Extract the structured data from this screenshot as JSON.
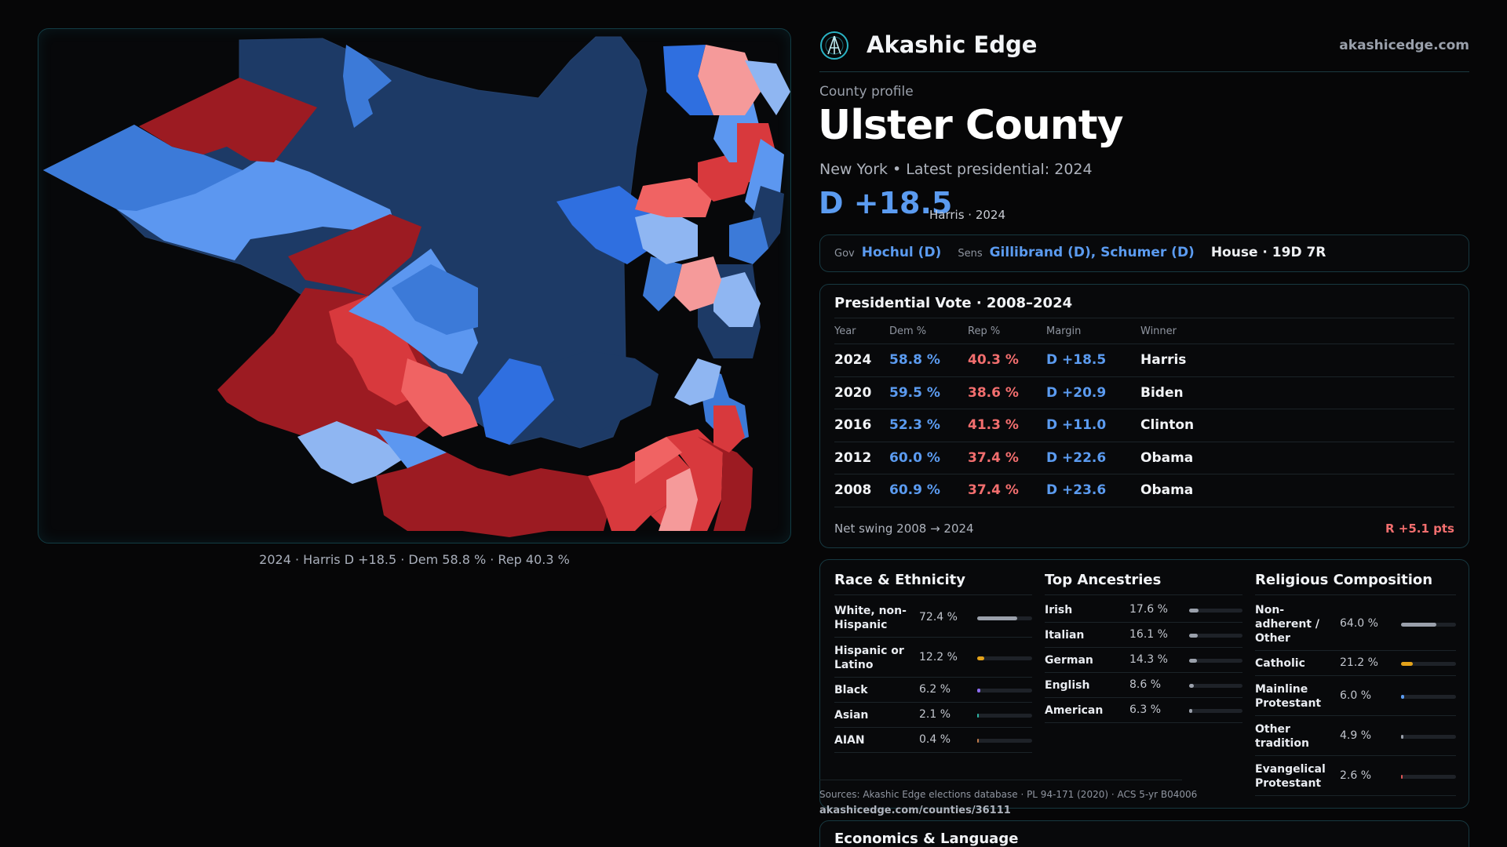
{
  "brand": {
    "name": "Akashic Edge",
    "url": "akashicedge.com",
    "logo": "akashic-edge-logo-icon"
  },
  "profile": {
    "kicker": "County profile",
    "county": "Ulster County",
    "subline": "New York  • Latest presidential: 2024",
    "margin": "D +18.5",
    "margin_note": "Harris · 2024"
  },
  "map": {
    "caption": "2024 · Harris D +18.5 · Dem 58.8 % · Rep 40.3 %"
  },
  "officials": {
    "gov_label": "Gov",
    "gov": "Hochul (D)",
    "sens_label": "Sens",
    "sens": "Gillibrand (D), Schumer (D)",
    "house": "House · 19D 7R"
  },
  "presidential": {
    "title": "Presidential Vote · 2008–2024",
    "headers": [
      "Year",
      "Dem %",
      "Rep %",
      "Margin",
      "Winner"
    ],
    "rows": [
      {
        "year": "2024",
        "dem": "58.8 %",
        "rep": "40.3 %",
        "margin": "D +18.5",
        "winner": "Harris"
      },
      {
        "year": "2020",
        "dem": "59.5 %",
        "rep": "38.6 %",
        "margin": "D +20.9",
        "winner": "Biden"
      },
      {
        "year": "2016",
        "dem": "52.3 %",
        "rep": "41.3 %",
        "margin": "D +11.0",
        "winner": "Clinton"
      },
      {
        "year": "2012",
        "dem": "60.0 %",
        "rep": "37.4 %",
        "margin": "D +22.6",
        "winner": "Obama"
      },
      {
        "year": "2008",
        "dem": "60.9 %",
        "rep": "37.4 %",
        "margin": "D +23.6",
        "winner": "Obama"
      }
    ],
    "swing_label": "Net swing 2008 → 2024",
    "swing_value": "R +5.1 pts"
  },
  "race": {
    "title": "Race & Ethnicity",
    "items": [
      {
        "label": "White, non-Hispanic",
        "pct": "72.4 %",
        "value": 72.4,
        "color": "#9aa0ab"
      },
      {
        "label": "Hispanic or Latino",
        "pct": "12.2 %",
        "value": 12.2,
        "color": "#e3a21a"
      },
      {
        "label": "Black",
        "pct": "6.2 %",
        "value": 6.2,
        "color": "#8c6cf0"
      },
      {
        "label": "Asian",
        "pct": "2.1 %",
        "value": 2.1,
        "color": "#2bb3a3"
      },
      {
        "label": "AIAN",
        "pct": "0.4 %",
        "value": 0.4,
        "color": "#c07a4a"
      }
    ]
  },
  "ancestry": {
    "title": "Top Ancestries",
    "items": [
      {
        "label": "Irish",
        "pct": "17.6 %",
        "value": 17.6,
        "color": "#9aa0ab"
      },
      {
        "label": "Italian",
        "pct": "16.1 %",
        "value": 16.1,
        "color": "#9aa0ab"
      },
      {
        "label": "German",
        "pct": "14.3 %",
        "value": 14.3,
        "color": "#9aa0ab"
      },
      {
        "label": "English",
        "pct": "8.6 %",
        "value": 8.6,
        "color": "#9aa0ab"
      },
      {
        "label": "American",
        "pct": "6.3 %",
        "value": 6.3,
        "color": "#9aa0ab"
      }
    ]
  },
  "religion": {
    "title": "Religious Composition",
    "items": [
      {
        "label": "Non-adherent / Other",
        "pct": "64.0 %",
        "value": 64.0,
        "color": "#9aa0ab"
      },
      {
        "label": "Catholic",
        "pct": "21.2 %",
        "value": 21.2,
        "color": "#e3a21a"
      },
      {
        "label": "Mainline Protestant",
        "pct": "6.0 %",
        "value": 6.0,
        "color": "#5b9bf0"
      },
      {
        "label": "Other tradition",
        "pct": "4.9 %",
        "value": 4.9,
        "color": "#9aa0ab"
      },
      {
        "label": "Evangelical Protestant",
        "pct": "2.6 %",
        "value": 2.6,
        "color": "#e05555"
      }
    ]
  },
  "sources": {
    "text": "Sources: Akashic Edge elections database · PL 94-171 (2020) · ACS 5-yr B04006",
    "url": "akashicedge.com/counties/36111"
  },
  "economics": {
    "title": "Economics & Language"
  },
  "colors": {
    "dem_strong": "#1d3a66",
    "dem_mid": "#2f6fe0",
    "dem_light": "#5c97f0",
    "dem_pale": "#8fb6f2",
    "rep_strong": "#9c1b22",
    "rep_mid": "#d8393d",
    "rep_light": "#f06363",
    "rep_pale": "#f59a9a"
  }
}
